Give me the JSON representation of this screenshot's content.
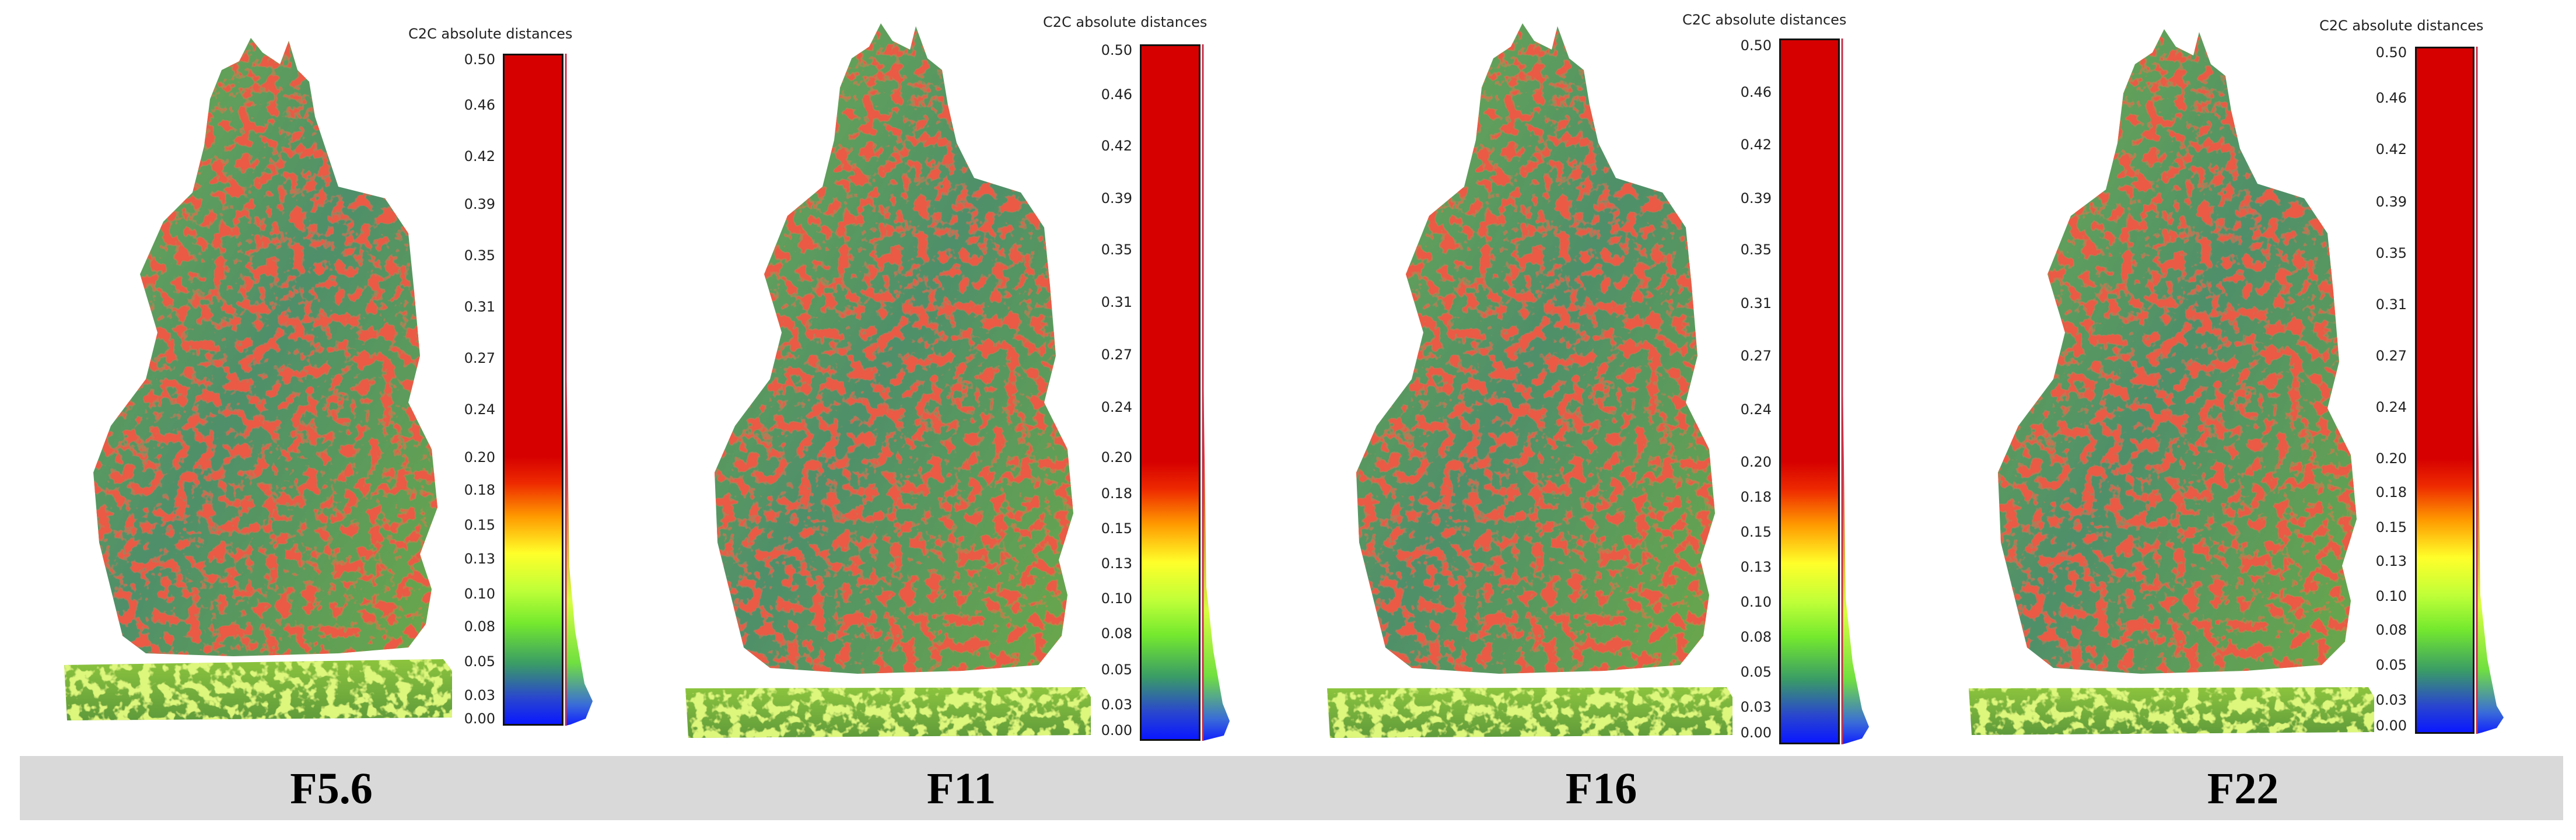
{
  "scale": {
    "title": "C2C absolute distances",
    "ticks": [
      "0.50",
      "0.46",
      "0.42",
      "0.39",
      "0.35",
      "0.31",
      "0.27",
      "0.24",
      "0.20",
      "0.18",
      "0.15",
      "0.13",
      "0.10",
      "0.08",
      "0.05",
      "0.03",
      "0.00"
    ],
    "colors": {
      "high": "#d60000",
      "mid": "#ffff2a",
      "low": "#0a18ff",
      "statue_base": "#5f9a5a",
      "statue_dev": "#cc1a10"
    }
  },
  "panels": [
    {
      "label": "F5.6"
    },
    {
      "label": "F11"
    },
    {
      "label": "F16"
    },
    {
      "label": "F22"
    }
  ]
}
